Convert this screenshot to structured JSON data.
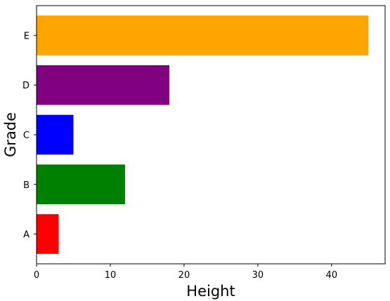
{
  "chart_data": {
    "type": "bar",
    "orientation": "horizontal",
    "categories": [
      "A",
      "B",
      "C",
      "D",
      "E"
    ],
    "values": [
      3,
      12,
      5,
      18,
      45
    ],
    "colors": [
      "#ff0000",
      "#008000",
      "#0000ff",
      "#800080",
      "#ffa500"
    ],
    "xlabel": "Height",
    "ylabel": "Grade",
    "xlim": [
      0,
      47.25
    ],
    "xticks": [
      0,
      10,
      20,
      30,
      40
    ],
    "grid": false
  }
}
